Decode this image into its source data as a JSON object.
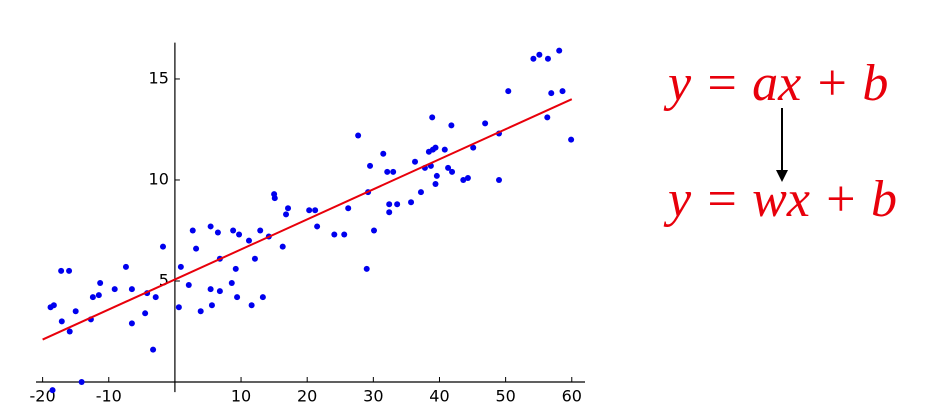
{
  "chart_data": {
    "type": "scatter",
    "x": [
      -18.8,
      -18.3,
      -17.2,
      -16,
      -17.1,
      -15.9,
      -15,
      -12.7,
      -12.4,
      -11.5,
      -11.3,
      -9.1,
      -7.4,
      -6.5,
      -6.5,
      -4.5,
      -4.2,
      -3.3,
      -2.9,
      -1.8,
      0.6,
      0.9,
      2.1,
      2.7,
      3.2,
      3.9,
      5.4,
      5.4,
      5.6,
      6.5,
      6.8,
      6.8,
      8.6,
      8.8,
      9.2,
      9.7,
      9.4,
      11.2,
      11.6,
      12.1,
      12.9,
      13.3,
      14.2,
      15.0,
      15.1,
      16.3,
      16.8,
      17.1,
      20.3,
      21.2,
      21.5,
      24.1,
      25.6,
      26.2,
      27.7,
      29,
      29.2,
      29.5,
      30.1,
      31.5,
      32.1,
      32.4,
      32.4,
      33,
      33.6,
      35.7,
      36.3,
      37.2,
      37.8,
      38.4,
      38.7,
      38.9,
      39,
      39.4,
      39.4,
      39.6,
      40.8,
      41.3,
      41.8,
      41.9,
      43.6,
      44.3,
      45.1,
      46.9,
      49.0,
      49.0,
      50.4,
      54.2,
      55.1,
      56.3,
      56.4,
      56.9,
      58.1,
      58.6,
      59.9,
      -14.1,
      -18.5
    ],
    "values": [
      3.7,
      3.8,
      5.5,
      5.5,
      3.0,
      2.5,
      3.5,
      3.1,
      4.2,
      4.3,
      4.9,
      4.6,
      5.7,
      4.6,
      2.9,
      3.4,
      4.4,
      1.6,
      4.2,
      6.7,
      3.7,
      5.7,
      4.8,
      7.5,
      6.6,
      3.5,
      7.7,
      4.6,
      3.8,
      7.4,
      6.1,
      4.5,
      4.9,
      7.5,
      5.6,
      7.3,
      4.2,
      7.0,
      3.8,
      6.1,
      7.5,
      4.2,
      7.2,
      9.3,
      9.1,
      6.7,
      8.3,
      8.6,
      8.5,
      8.5,
      7.7,
      7.3,
      7.3,
      8.6,
      12.2,
      5.6,
      9.4,
      10.7,
      7.5,
      11.3,
      10.4,
      8.4,
      8.8,
      10.4,
      8.8,
      8.9,
      10.9,
      9.4,
      10.6,
      11.4,
      10.7,
      13.1,
      11.5,
      11.6,
      9.8,
      10.2,
      11.5,
      10.6,
      12.7,
      10.4,
      10.0,
      10.1,
      11.6,
      12.8,
      10.0,
      12.3,
      14.4,
      16.0,
      16.2,
      13.1,
      16.0,
      14.3,
      16.4,
      14.4,
      12.0,
      0,
      -0.4
    ],
    "color": "#0000ee",
    "fit_line": {
      "x": [
        -20,
        60
      ],
      "values": [
        2.1,
        14.0
      ],
      "color": "#e8000b"
    },
    "xlim": [
      -21,
      62
    ],
    "ylim": [
      -0.5,
      16.8
    ],
    "xticks": [
      -20,
      -10,
      10,
      20,
      30,
      40,
      50,
      60
    ],
    "yticks": [
      5,
      10,
      15
    ],
    "annotations": [
      "y = ax + b",
      "y = wx + b"
    ]
  }
}
